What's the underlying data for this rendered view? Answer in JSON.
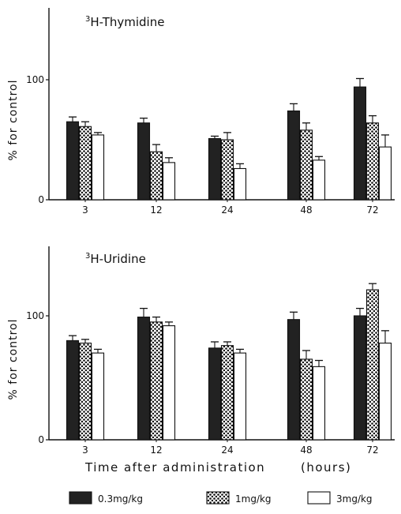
{
  "figure_caption": {
    "xlabel": "Time after administration",
    "xunit": "(hours)"
  },
  "chart_data": [
    {
      "type": "bar",
      "title_prefix": "3",
      "title": "H-Thymidine",
      "ylabel": "% for control",
      "ylim": [
        0,
        160
      ],
      "yticks": [
        0,
        100
      ],
      "categories": [
        "3",
        "12",
        "24",
        "48",
        "72"
      ],
      "series": [
        {
          "name": "0.3mg/kg",
          "values": [
            65,
            64,
            51,
            74,
            94
          ],
          "errors": [
            4,
            4,
            2,
            6,
            7
          ],
          "fill": "dark"
        },
        {
          "name": "1mg/kg",
          "values": [
            61,
            40,
            50,
            58,
            64
          ],
          "errors": [
            4,
            6,
            6,
            6,
            6
          ],
          "fill": "dotted"
        },
        {
          "name": "3mg/kg",
          "values": [
            54,
            31,
            26,
            33,
            44
          ],
          "errors": [
            2,
            4,
            4,
            3,
            10
          ],
          "fill": "white"
        }
      ],
      "grid": false
    },
    {
      "type": "bar",
      "title_prefix": "3",
      "title": "H-Uridine",
      "ylabel": "% for control",
      "ylim": [
        0,
        160
      ],
      "yticks": [
        0,
        100
      ],
      "categories": [
        "3",
        "12",
        "24",
        "48",
        "72"
      ],
      "series": [
        {
          "name": "0.3mg/kg",
          "values": [
            80,
            99,
            74,
            97,
            100
          ],
          "errors": [
            4,
            7,
            5,
            6,
            6
          ],
          "fill": "dark"
        },
        {
          "name": "1mg/kg",
          "values": [
            78,
            95,
            76,
            65,
            121
          ],
          "errors": [
            3,
            4,
            3,
            7,
            5
          ],
          "fill": "dotted"
        },
        {
          "name": "3mg/kg",
          "values": [
            70,
            92,
            70,
            59,
            78
          ],
          "errors": [
            3,
            3,
            3,
            5,
            10
          ],
          "fill": "white"
        }
      ],
      "grid": false
    }
  ],
  "legend": {
    "placement": "bottom",
    "entries": [
      {
        "label": "0.3mg/kg",
        "fill": "dark"
      },
      {
        "label": "1mg/kg",
        "fill": "dotted"
      },
      {
        "label": "3mg/kg",
        "fill": "white"
      }
    ]
  }
}
